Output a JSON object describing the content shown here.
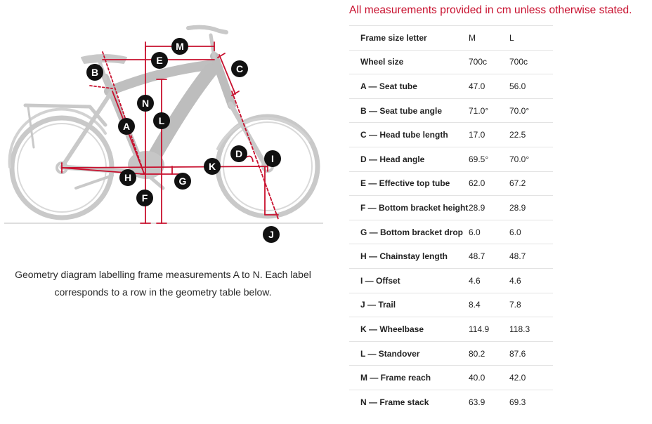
{
  "note": "All measurements provided in cm unless otherwise stated.",
  "caption": "Geometry diagram labelling frame measurements A to N. Each label corresponds to a row in the geometry table below.",
  "diagram": {
    "labels": [
      "A",
      "B",
      "C",
      "D",
      "E",
      "F",
      "G",
      "H",
      "I",
      "J",
      "K",
      "L",
      "M",
      "N"
    ],
    "colors": {
      "measure": "#c8102e",
      "bike": "#c4c4c4",
      "label": "#111111"
    }
  },
  "table": {
    "header": {
      "name": "Frame size letter",
      "m": "M",
      "l": "L"
    },
    "rows": [
      {
        "name": "Wheel size",
        "m": "700c",
        "l": "700c"
      },
      {
        "name": "A — Seat tube",
        "m": "47.0",
        "l": "56.0"
      },
      {
        "name": "B — Seat tube angle",
        "m": "71.0°",
        "l": "70.0°"
      },
      {
        "name": "C — Head tube length",
        "m": "17.0",
        "l": "22.5"
      },
      {
        "name": "D — Head angle",
        "m": "69.5°",
        "l": "70.0°"
      },
      {
        "name": "E — Effective top tube",
        "m": "62.0",
        "l": "67.2"
      },
      {
        "name": "F — Bottom bracket height",
        "m": "28.9",
        "l": "28.9"
      },
      {
        "name": "G — Bottom bracket drop",
        "m": "6.0",
        "l": "6.0"
      },
      {
        "name": "H — Chainstay length",
        "m": "48.7",
        "l": "48.7"
      },
      {
        "name": "I — Offset",
        "m": "4.6",
        "l": "4.6"
      },
      {
        "name": "J — Trail",
        "m": "8.4",
        "l": "7.8"
      },
      {
        "name": "K — Wheelbase",
        "m": "114.9",
        "l": "118.3"
      },
      {
        "name": "L — Standover",
        "m": "80.2",
        "l": "87.6"
      },
      {
        "name": "M — Frame reach",
        "m": "40.0",
        "l": "42.0"
      },
      {
        "name": "N — Frame stack",
        "m": "63.9",
        "l": "69.3"
      }
    ]
  }
}
